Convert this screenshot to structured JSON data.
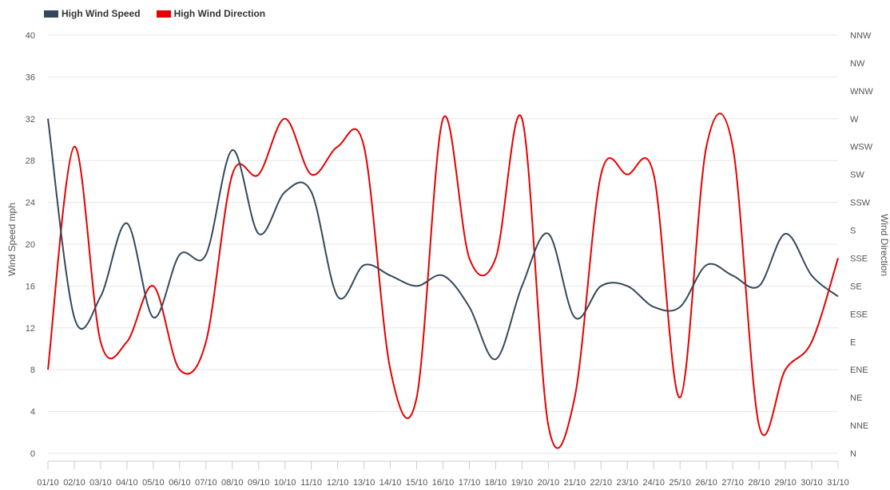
{
  "legend": {
    "speed_label": "High Wind Speed",
    "direction_label": "High Wind Direction"
  },
  "colors": {
    "speed": "#34495e",
    "direction": "#e60000",
    "grid": "#e6e6e6"
  },
  "chart_data": {
    "type": "line",
    "categories": [
      "01/10",
      "02/10",
      "03/10",
      "04/10",
      "05/10",
      "06/10",
      "07/10",
      "08/10",
      "09/10",
      "10/10",
      "11/10",
      "12/10",
      "13/10",
      "14/10",
      "15/10",
      "16/10",
      "17/10",
      "18/10",
      "19/10",
      "20/10",
      "21/10",
      "22/10",
      "23/10",
      "24/10",
      "25/10",
      "26/10",
      "27/10",
      "28/10",
      "29/10",
      "30/10",
      "31/10"
    ],
    "ylabel": "Wind Speed mph",
    "ylim": [
      0,
      40
    ],
    "yticks": [
      0,
      4,
      8,
      12,
      16,
      20,
      24,
      28,
      32,
      36,
      40
    ],
    "y2label": "Wind Direction",
    "y2ticks": [
      "N",
      "NNE",
      "NE",
      "ENE",
      "E",
      "ESE",
      "SE",
      "SSE",
      "S",
      "SSW",
      "SW",
      "WSW",
      "W",
      "WNW",
      "NW",
      "NNW"
    ],
    "grid": true,
    "legend_position": "top-left",
    "series": [
      {
        "name": "High Wind Speed",
        "axis": "left",
        "values": [
          32,
          13,
          15,
          22,
          13,
          19,
          19,
          29,
          21,
          25,
          25,
          15,
          18,
          17,
          16,
          17,
          14,
          9,
          16,
          21,
          13,
          16,
          16,
          14,
          14,
          18,
          17,
          16,
          21,
          17,
          15
        ]
      },
      {
        "name": "High Wind Direction",
        "axis": "right",
        "values": [
          "ENE",
          "WSW",
          "E",
          "E",
          "SE",
          "ENE",
          "E",
          "SW",
          "SW",
          "W",
          "SW",
          "WSW",
          "WSW",
          "ENE",
          "NE",
          "W",
          "SSE",
          "SSE",
          "W",
          "NNE",
          "NE",
          "SW",
          "SW",
          "SW",
          "NE",
          "WSW",
          "WSW",
          "NNE",
          "ENE",
          "E",
          "SSE"
        ]
      }
    ]
  }
}
